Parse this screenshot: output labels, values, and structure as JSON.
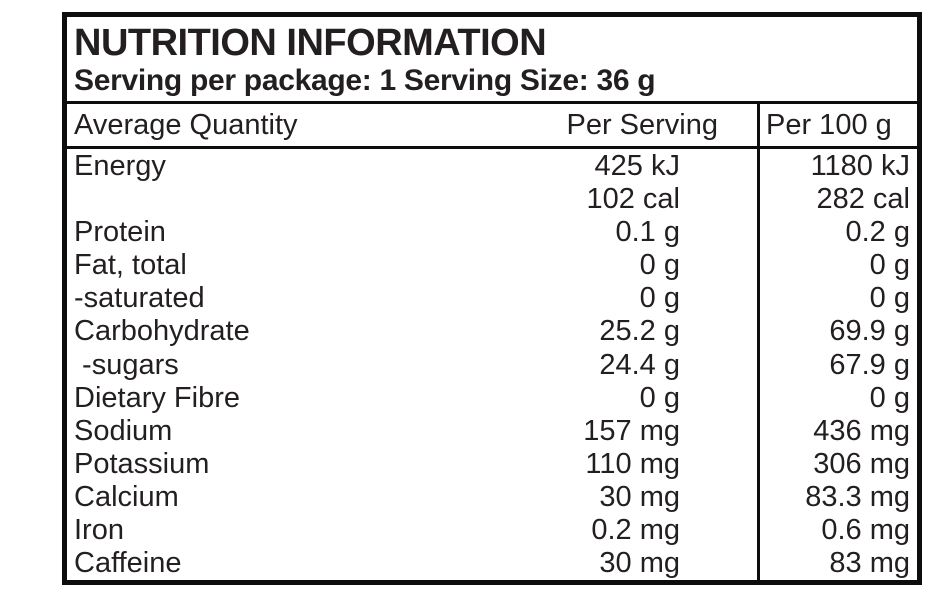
{
  "label": {
    "title": "NUTRITION INFORMATION",
    "subtitle": "Serving per package: 1 Serving Size: 36 g",
    "columns": {
      "name": "Average Quantity",
      "per_serving": "Per Serving",
      "per_100g": "Per 100 g"
    },
    "rows": [
      {
        "name": "Energy",
        "per_serving": "425 kJ",
        "per_100g": "1180 kJ"
      },
      {
        "name": "",
        "per_serving": "102 cal",
        "per_100g": "282 cal"
      },
      {
        "name": "Protein",
        "per_serving": "0.1 g",
        "per_100g": "0.2 g"
      },
      {
        "name": "Fat, total",
        "per_serving": "0 g",
        "per_100g": "0 g"
      },
      {
        "name": "-saturated",
        "per_serving": "0 g",
        "per_100g": "0 g"
      },
      {
        "name": "Carbohydrate",
        "per_serving": "25.2 g",
        "per_100g": "69.9 g"
      },
      {
        "name": " -sugars",
        "per_serving": "24.4 g",
        "per_100g": "67.9 g"
      },
      {
        "name": "Dietary Fibre",
        "per_serving": "0 g",
        "per_100g": "0 g"
      },
      {
        "name": "Sodium",
        "per_serving": "157 mg",
        "per_100g": "436 mg"
      },
      {
        "name": "Potassium",
        "per_serving": "110 mg",
        "per_100g": "306 mg"
      },
      {
        "name": "Calcium",
        "per_serving": "30 mg",
        "per_100g": "83.3 mg"
      },
      {
        "name": "Iron",
        "per_serving": "0.2 mg",
        "per_100g": "0.6 mg"
      },
      {
        "name": "Caffeine",
        "per_serving": "30 mg",
        "per_100g": "83 mg"
      }
    ],
    "colors": {
      "text": "#231f20",
      "border": "#0d0d0d",
      "background": "#ffffff"
    }
  }
}
